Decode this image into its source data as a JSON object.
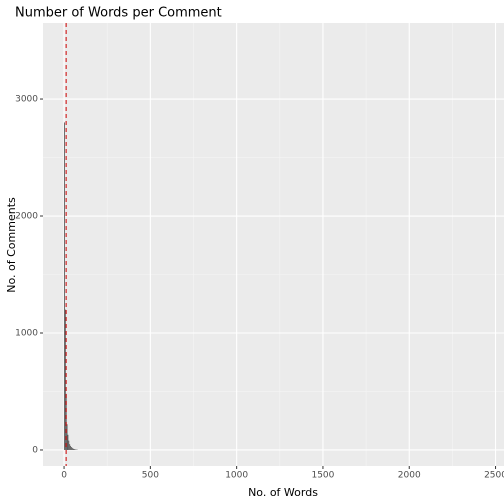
{
  "chart_data": {
    "type": "histogram",
    "title": "Number of Words per Comment",
    "x_label": "No. of Words",
    "y_label": "No. of Comments",
    "bins": [
      0,
      5,
      10,
      15,
      20,
      25,
      30,
      35,
      40,
      45,
      50,
      55,
      60,
      65,
      70,
      75,
      80
    ],
    "counts": [
      2800,
      1200,
      480,
      220,
      130,
      80,
      50,
      35,
      25,
      18,
      12,
      8,
      6,
      4,
      3,
      2
    ],
    "color": "#595959",
    "vline": {
      "value": 12,
      "color": "#cc0000"
    },
    "xlim": [
      -122,
      2549
    ],
    "xticks": [
      0,
      500,
      1000,
      1500,
      2000,
      2500
    ],
    "ylim": [
      -137,
      3650
    ],
    "yticks": [
      0,
      1000,
      2000,
      3000
    ],
    "grid": true
  }
}
